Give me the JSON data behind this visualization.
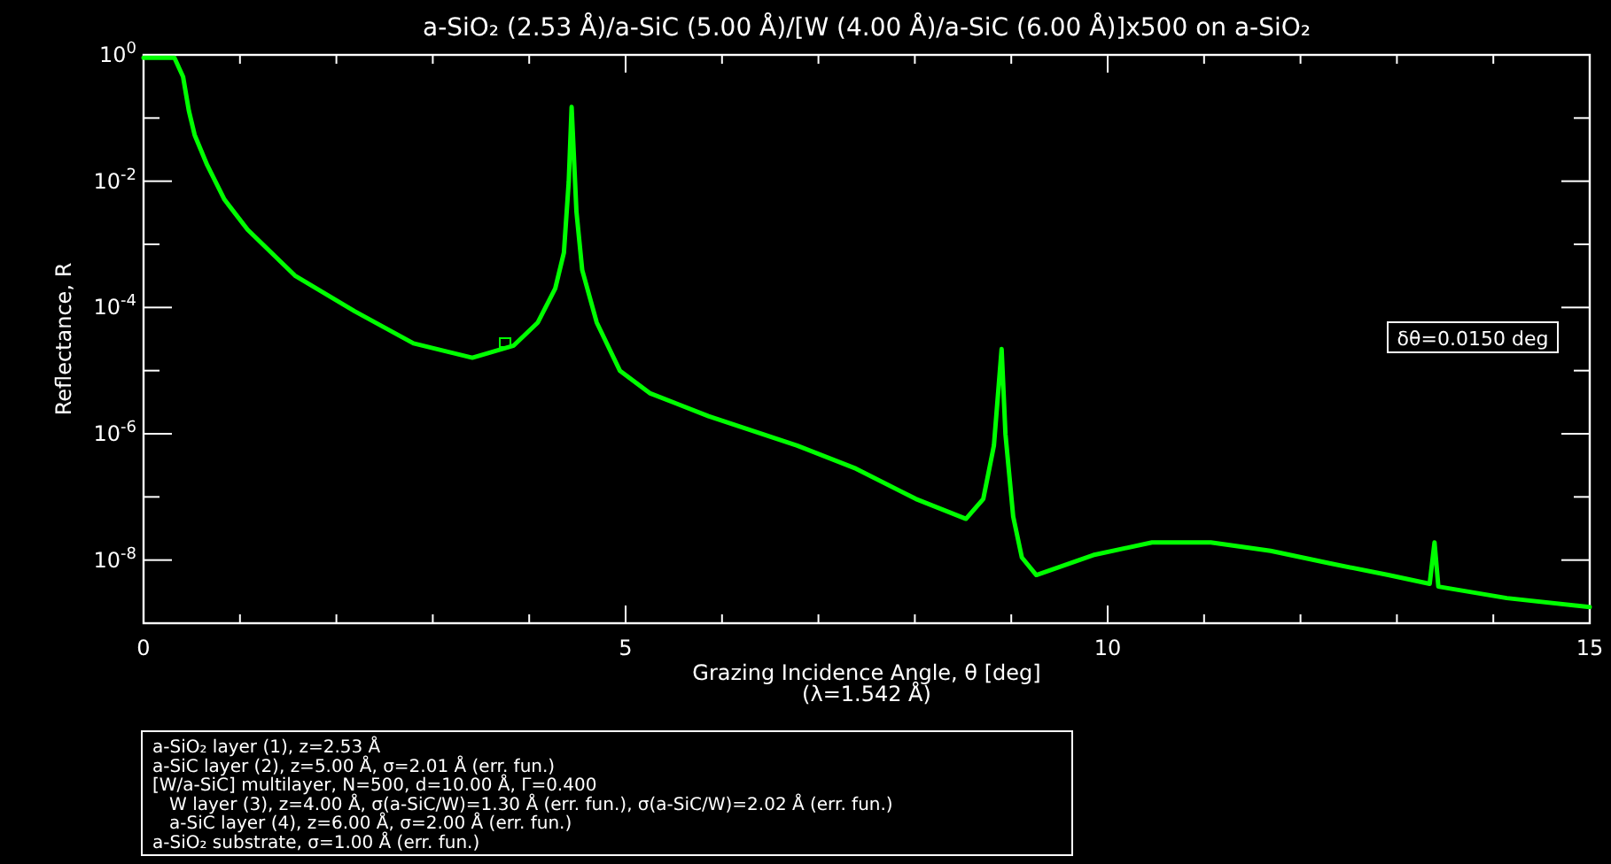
{
  "chart_data": {
    "type": "line",
    "title": "a-SiO₂ (2.53 Å)/a-SiC (5.00 Å)/[W (4.00 Å)/a-SiC (6.00 Å)]x500 on a-SiO₂",
    "xlabel": "Grazing Incidence Angle, θ [deg]\n(λ=1.542 Å)",
    "ylabel": "Reflectance, R",
    "log": "y",
    "grid": false,
    "marker": "none",
    "line_style": "solid",
    "xlim": [
      0,
      15
    ],
    "xticks": [
      0,
      {
        "value": 1,
        "label": null
      },
      {
        "value": 2,
        "label": null
      },
      {
        "value": 3,
        "label": null
      },
      {
        "value": 4,
        "label": null
      },
      5,
      {
        "value": 6,
        "label": null
      },
      {
        "value": 7,
        "label": null
      },
      {
        "value": 8,
        "label": null
      },
      {
        "value": 9,
        "label": null
      },
      10,
      {
        "value": 11,
        "label": null
      },
      {
        "value": 12,
        "label": null
      },
      {
        "value": 13,
        "label": null
      },
      {
        "value": 14,
        "label": null
      },
      15
    ],
    "ylim": [
      1e-09,
      1
    ],
    "yticks": [
      {
        "value": 1e-08,
        "label": "10$^{-8}$"
      },
      {
        "value": 1e-07,
        "label": null
      },
      {
        "value": 1e-06,
        "label": "10$^{-6}$"
      },
      {
        "value": 1e-05,
        "label": null
      },
      {
        "value": 0.0001,
        "label": "10$^{-4}$"
      },
      {
        "value": 0.001,
        "label": null
      },
      {
        "value": 0.01,
        "label": "10$^{-2}$"
      },
      {
        "value": 0.1,
        "label": null
      },
      {
        "value": 1,
        "label": "10$^{0}$"
      }
    ],
    "x": [
      0,
      0.32,
      0.41,
      0.47,
      0.53,
      0.66,
      0.84,
      1.08,
      1.57,
      2.19,
      2.8,
      3.41,
      3.84,
      4.09,
      4.27,
      4.36,
      4.41,
      4.44,
      4.49,
      4.55,
      4.7,
      4.94,
      5.25,
      5.86,
      6.78,
      7.39,
      8.01,
      8.53,
      8.71,
      8.82,
      8.9,
      8.94,
      9.02,
      9.11,
      9.26,
      9.85,
      10.46,
      11.07,
      11.69,
      12.3,
      12.91,
      13.34,
      13.39,
      13.43,
      14.14,
      15
    ],
    "series": [
      {
        "color": "#00ff00",
        "values": [
          0.9,
          0.9,
          0.45,
          0.13,
          0.054,
          0.018,
          0.0051,
          0.0017,
          0.00032,
          8.7e-05,
          2.7e-05,
          1.6e-05,
          2.5e-05,
          5.8e-05,
          0.0002,
          0.00074,
          0.0098,
          0.15,
          0.0033,
          0.00039,
          5.8e-05,
          1e-05,
          4.4e-06,
          1.9e-06,
          6.5e-07,
          2.8e-07,
          9.3e-08,
          4.5e-08,
          9.3e-08,
          6.5e-07,
          2.2e-05,
          9.8e-07,
          4.9e-08,
          1.1e-08,
          5.8e-09,
          1.2e-08,
          1.9e-08,
          1.9e-08,
          1.4e-08,
          8.9e-09,
          5.8e-09,
          4.2e-09,
          1.9e-08,
          3.8e-09,
          2.5e-09,
          1.8e-09
        ]
      }
    ],
    "annotations": [
      "a-SiO₂ layer (1), z=2.53 Å",
      "a-SiC layer (2), z=5.00 Å, σ=2.01 Å (err. fun.)",
      "[W/a-SiC] multilayer, N=500, d=10.00 Å, Γ=0.400",
      "   W layer (3), z=4.00 Å, σ(a-SiC/W)=1.30 Å (err. fun.), σ(a-SiC/W)=2.02 Å (err. fun.)",
      "   a-SiC layer (4), z=6.00 Å, σ=2.00 Å (err. fun.)",
      "a-SiO₂ substrate, σ=1.00 Å (err. fun.)",
      "δθ=0.0150 deg"
    ]
  }
}
